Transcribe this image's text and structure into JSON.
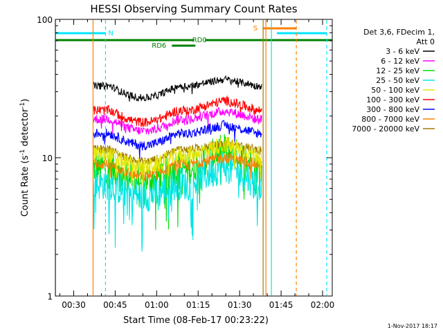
{
  "chart_data": {
    "type": "line",
    "title": "HESSI Observing Summary Count Rates",
    "xlabel": "Start Time (08-Feb-17 00:23:22)",
    "ylabel_main": "Count Rate (s",
    "ylabel_sup1": "-1",
    "ylabel_mid": " detector",
    "ylabel_sup2": "-1",
    "ylabel_end": ")",
    "y_scale": "log",
    "ylim": [
      1,
      100
    ],
    "xlim_minutes": [
      23.37,
      123.5
    ],
    "x_ticks": [
      {
        "label": "00:30",
        "min": 30
      },
      {
        "label": "00:45",
        "min": 45
      },
      {
        "label": "01:00",
        "min": 60
      },
      {
        "label": "01:15",
        "min": 75
      },
      {
        "label": "01:30",
        "min": 90
      },
      {
        "label": "01:45",
        "min": 105
      },
      {
        "label": "02:00",
        "min": 120
      }
    ],
    "y_ticks": [
      {
        "label": "1",
        "value": 1
      },
      {
        "label": "10",
        "value": 10
      },
      {
        "label": "100",
        "value": 100
      }
    ],
    "legend_header_1": "Det 3,6, FDecim 1,",
    "legend_header_2": "Att 0",
    "legend_position": "right",
    "data_start_min": 37.0,
    "data_end_min": 98.0,
    "series": [
      {
        "name": "3 - 6 keV",
        "color": "#000000",
        "base": 33,
        "hump": 1.12,
        "noise": 0.06
      },
      {
        "name": "6 - 12 keV",
        "color": "#ff00ff",
        "base": 19,
        "hump": 1.15,
        "noise": 0.08
      },
      {
        "name": "12 - 25 keV",
        "color": "#00dd00",
        "base": 8.5,
        "hump": 1.35,
        "noise": 0.28
      },
      {
        "name": "25 - 50 keV",
        "color": "#00e5e5",
        "base": 6.5,
        "hump": 1.35,
        "noise": 0.28
      },
      {
        "name": "50 - 100 keV",
        "color": "#e6e600",
        "base": 10.5,
        "hump": 1.2,
        "noise": 0.14
      },
      {
        "name": "100 - 300 keV",
        "color": "#ff0000",
        "base": 22,
        "hump": 1.18,
        "noise": 0.08
      },
      {
        "name": "300 - 800 keV",
        "color": "#0000ff",
        "base": 15,
        "hump": 1.15,
        "noise": 0.08
      },
      {
        "name": "800 - 7000 keV",
        "color": "#ff8000",
        "base": 9,
        "hump": 1.12,
        "noise": 0.09
      },
      {
        "name": "7000 - 20000 keV",
        "color": "#a07800",
        "base": 11.5,
        "hump": 1.1,
        "noise": 0.07
      }
    ],
    "annotations": {
      "N_label": "N",
      "S_label": "S",
      "RD0_label": "RD0",
      "RD6_label": "RD6"
    },
    "night_segments_min": [
      [
        23.37,
        41.5
      ],
      [
        103.5,
        121.5
      ]
    ],
    "saa_segment_min": [
      98.5,
      110.5
    ],
    "rd0_segments_min": [
      [
        23.37,
        73.5
      ],
      [
        77.5,
        123.5
      ]
    ],
    "rd6_segment_min": [
      65.5,
      74.0
    ],
    "cyan_solid_lines_min": [
      23.4,
      101.5
    ],
    "cyan_dashed_lines_min": [
      41.5,
      121.5
    ],
    "orange_solid_line_min": 37.0,
    "orange_dashed_line_min": 110.5,
    "brown_solid_line_min": 98.5,
    "orange_solid_line_2_min": 99.5
  },
  "footer": {
    "date_stamp": "1-Nov-2017 18:17"
  }
}
